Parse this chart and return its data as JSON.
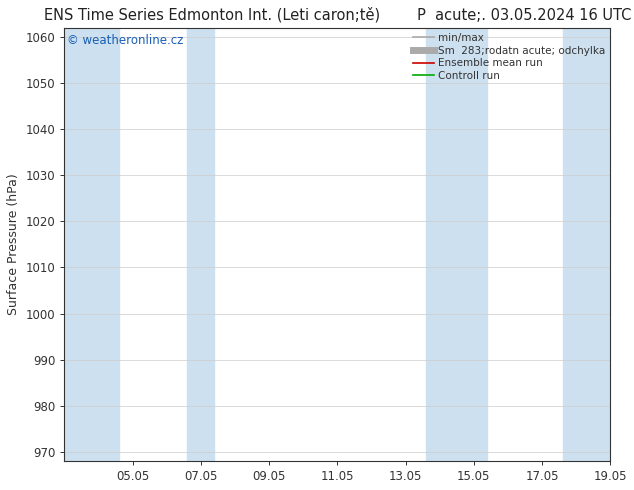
{
  "title_left": "ENS Time Series Edmonton Int. (Leti caron;tě)",
  "title_right": "P  acute;. 03.05.2024 16 UTC",
  "ylabel": "Surface Pressure (hPa)",
  "ylim": [
    968,
    1062
  ],
  "yticks": [
    970,
    980,
    990,
    1000,
    1010,
    1020,
    1030,
    1040,
    1050,
    1060
  ],
  "xlim": [
    0,
    16
  ],
  "xtick_positions": [
    2,
    4,
    6,
    8,
    10,
    12,
    14,
    16
  ],
  "xtick_labels": [
    "05.05",
    "07.05",
    "09.05",
    "11.05",
    "13.05",
    "15.05",
    "17.05",
    "19.05"
  ],
  "shaded_bands": [
    {
      "x_start": -0.1,
      "x_end": 1.6
    },
    {
      "x_start": 3.6,
      "x_end": 4.4
    },
    {
      "x_start": 10.6,
      "x_end": 12.4
    },
    {
      "x_start": 14.6,
      "x_end": 16.1
    }
  ],
  "shaded_color": "#cce0f0",
  "background_color": "#ffffff",
  "plot_bg_color": "#ffffff",
  "watermark_text": "© weatheronline.cz",
  "watermark_color": "#1a5fb4",
  "watermark_fontsize": 8.5,
  "legend_items": [
    {
      "label": "min/max",
      "color": "#aaaaaa",
      "linestyle": "-",
      "linewidth": 1.2,
      "thick": false
    },
    {
      "label": "Sm  283;rodatn acute; odchylka",
      "color": "#aaaaaa",
      "linestyle": "-",
      "linewidth": 5,
      "thick": true
    },
    {
      "label": "Ensemble mean run",
      "color": "#cc0000",
      "linestyle": "-",
      "linewidth": 1.2,
      "thick": false
    },
    {
      "label": "Controll run",
      "color": "#00aa00",
      "linestyle": "-",
      "linewidth": 1.2,
      "thick": false
    }
  ],
  "title_fontsize": 10.5,
  "tick_fontsize": 8.5,
  "ylabel_fontsize": 9,
  "axis_color": "#333333",
  "tick_color": "#333333"
}
